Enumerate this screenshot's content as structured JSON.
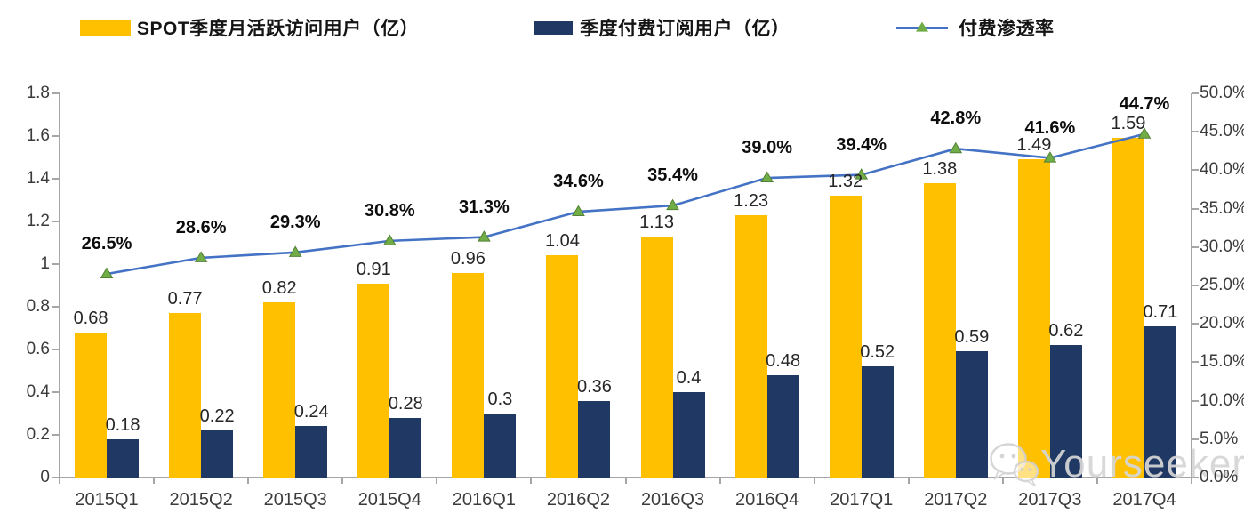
{
  "legend": [
    {
      "label": "SPOT季度月活跃访问用户（亿）",
      "color": "#FFC000",
      "type": "bar"
    },
    {
      "label": "季度付费订阅用户（亿）",
      "color": "#1F3864",
      "type": "bar"
    },
    {
      "label": "付费渗透率",
      "color": "#4472C4",
      "marker_color": "#70AD47",
      "marker_stroke": "#538135",
      "type": "line"
    }
  ],
  "watermark": {
    "text": "Yourseeker",
    "icon": "wechat-icon"
  },
  "chart_data": {
    "type": "combo",
    "categories": [
      "2015Q1",
      "2015Q2",
      "2015Q3",
      "2015Q4",
      "2016Q1",
      "2016Q2",
      "2016Q3",
      "2016Q4",
      "2017Q1",
      "2017Q2",
      "2017Q3",
      "2017Q4"
    ],
    "series": [
      {
        "name": "SPOT季度月活跃访问用户（亿）",
        "type": "bar",
        "axis": "left",
        "color": "#FFC000",
        "values": [
          0.68,
          0.77,
          0.82,
          0.91,
          0.96,
          1.04,
          1.13,
          1.23,
          1.32,
          1.38,
          1.49,
          1.59
        ],
        "labels": [
          "0.68",
          "0.77",
          "0.82",
          "0.91",
          "0.96",
          "1.04",
          "1.13",
          "1.23",
          "1.32",
          "1.38",
          "1.49",
          "1.59"
        ]
      },
      {
        "name": "季度付费订阅用户（亿）",
        "type": "bar",
        "axis": "left",
        "color": "#1F3864",
        "values": [
          0.18,
          0.22,
          0.24,
          0.28,
          0.3,
          0.36,
          0.4,
          0.48,
          0.52,
          0.59,
          0.62,
          0.71
        ],
        "labels": [
          "0.18",
          "0.22",
          "0.24",
          "0.28",
          "0.3",
          "0.36",
          "0.4",
          "0.48",
          "0.52",
          "0.59",
          "0.62",
          "0.71"
        ]
      },
      {
        "name": "付费渗透率",
        "type": "line",
        "axis": "right",
        "color": "#4472C4",
        "marker": "triangle",
        "marker_color": "#70AD47",
        "values": [
          26.5,
          28.6,
          29.3,
          30.8,
          31.3,
          34.6,
          35.4,
          39.0,
          39.4,
          42.8,
          41.6,
          44.7
        ],
        "labels": [
          "26.5%",
          "28.6%",
          "29.3%",
          "30.8%",
          "31.3%",
          "34.6%",
          "35.4%",
          "39.0%",
          "39.4%",
          "42.8%",
          "41.6%",
          "44.7%"
        ]
      }
    ],
    "left_axis": {
      "min": 0,
      "max": 1.8,
      "step": 0.2,
      "ticks": [
        "0",
        "0.2",
        "0.4",
        "0.6",
        "0.8",
        "1",
        "1.2",
        "1.4",
        "1.6",
        "1.8"
      ]
    },
    "right_axis": {
      "min": 0,
      "max": 50,
      "step": 5,
      "ticks": [
        "0.0%",
        "5.0%",
        "10.0%",
        "15.0%",
        "20.0%",
        "25.0%",
        "30.0%",
        "35.0%",
        "40.0%",
        "45.0%",
        "50.0%"
      ]
    },
    "grid": false,
    "legend_position": "top",
    "title": ""
  }
}
